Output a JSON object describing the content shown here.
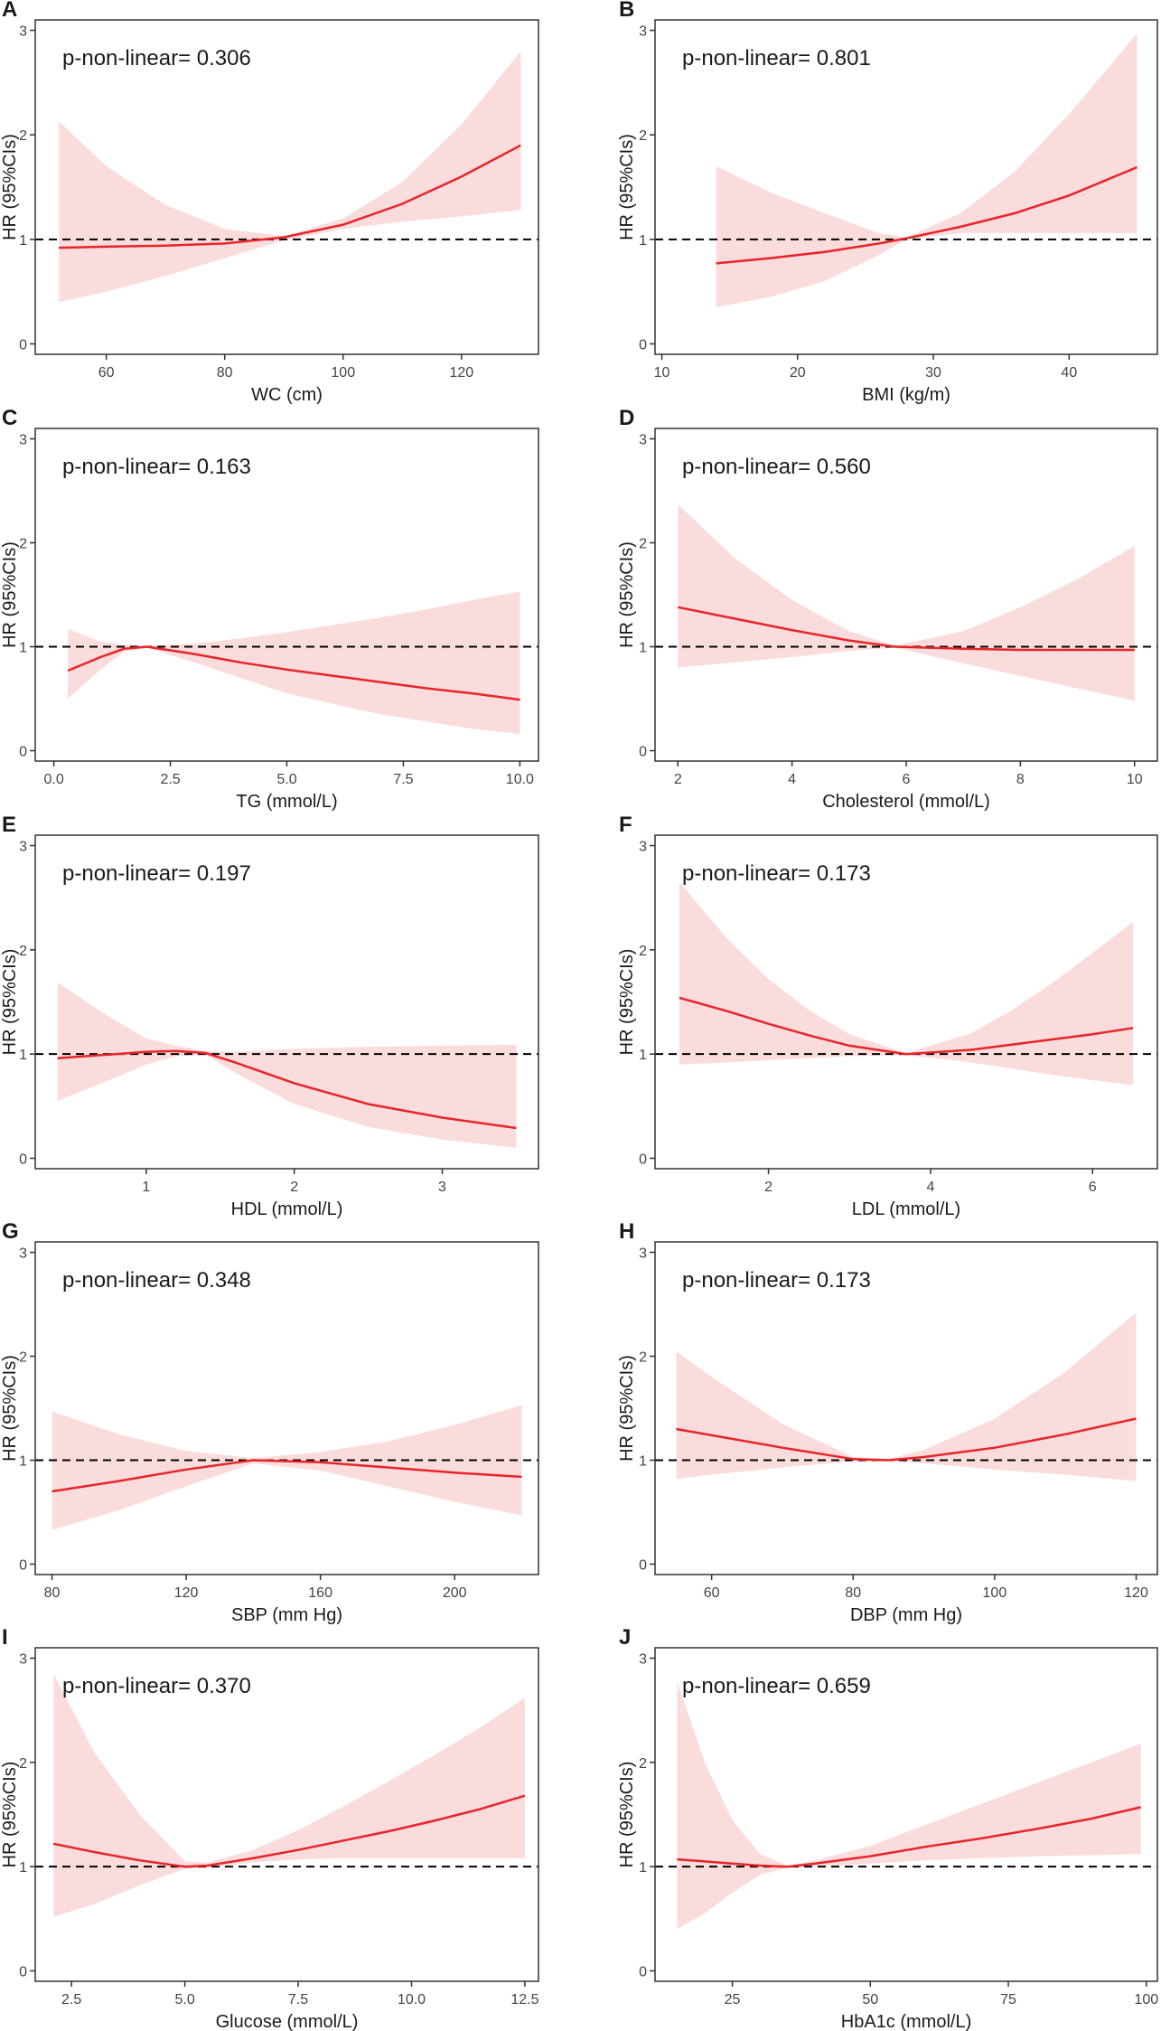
{
  "colors": {
    "line": "#e8242b",
    "band": "#fbdcdc",
    "reference": "#000000",
    "axis": "#333333",
    "text": "#1a1a1a"
  },
  "chart_data": [
    {
      "panel": "A",
      "type": "line",
      "xlabel": "WC (cm)",
      "ylabel": "HR (95%CIs)",
      "annotation": "p-non-linear= 0.306",
      "xlim": [
        48,
        133
      ],
      "ylim": [
        -0.1,
        3.1
      ],
      "xticks": [
        60,
        80,
        100,
        120
      ],
      "xtick_labels": [
        "60",
        "80",
        "100",
        "120"
      ],
      "yticks": [
        0,
        1,
        2,
        3
      ],
      "reference_line": 1,
      "series": [
        {
          "name": "HR",
          "x": [
            52,
            60,
            70,
            80,
            90,
            100,
            110,
            120,
            130
          ],
          "y": [
            0.92,
            0.93,
            0.94,
            0.96,
            1.02,
            1.14,
            1.34,
            1.6,
            1.9
          ]
        },
        {
          "name": "Lower 95% CI",
          "x": [
            52,
            60,
            70,
            80,
            90,
            100,
            110,
            120,
            130
          ],
          "y": [
            0.4,
            0.5,
            0.65,
            0.82,
            0.99,
            1.1,
            1.17,
            1.22,
            1.28
          ]
        },
        {
          "name": "Upper 95% CI",
          "x": [
            52,
            60,
            70,
            80,
            90,
            100,
            110,
            120,
            130
          ],
          "y": [
            2.13,
            1.7,
            1.33,
            1.1,
            1.03,
            1.2,
            1.55,
            2.1,
            2.8
          ]
        }
      ]
    },
    {
      "panel": "B",
      "type": "line",
      "xlabel": "BMI (kg/m)",
      "ylabel": "HR (95%CIs)",
      "annotation": "p-non-linear= 0.801",
      "xlim": [
        9.5,
        46.5
      ],
      "ylim": [
        -0.1,
        3.1
      ],
      "xticks": [
        10,
        20,
        30,
        40
      ],
      "xtick_labels": [
        "10",
        "20",
        "30",
        "40"
      ],
      "yticks": [
        0,
        1,
        2,
        3
      ],
      "reference_line": 1,
      "series": [
        {
          "name": "HR",
          "x": [
            14,
            18,
            22,
            26,
            28,
            32,
            36,
            40,
            45
          ],
          "y": [
            0.77,
            0.82,
            0.88,
            0.96,
            1.01,
            1.12,
            1.25,
            1.42,
            1.69
          ]
        },
        {
          "name": "Lower 95% CI",
          "x": [
            14,
            18,
            22,
            26,
            28,
            32,
            36,
            40,
            45
          ],
          "y": [
            0.35,
            0.45,
            0.6,
            0.85,
            1.0,
            1.06,
            1.06,
            1.06,
            1.06
          ]
        },
        {
          "name": "Upper 95% CI",
          "x": [
            14,
            18,
            22,
            26,
            28,
            32,
            36,
            40,
            45
          ],
          "y": [
            1.7,
            1.45,
            1.25,
            1.06,
            1.02,
            1.25,
            1.65,
            2.2,
            2.97
          ]
        }
      ]
    },
    {
      "panel": "C",
      "type": "line",
      "xlabel": "TG (mmol/L)",
      "ylabel": "HR (95%CIs)",
      "annotation": "p-non-linear= 0.163",
      "xlim": [
        -0.4,
        10.4
      ],
      "ylim": [
        -0.1,
        3.1
      ],
      "xticks": [
        0,
        2.5,
        5,
        7.5,
        10
      ],
      "xtick_labels": [
        "0.0",
        "2.5",
        "5.0",
        "7.5",
        "10.0"
      ],
      "yticks": [
        0,
        1,
        2,
        3
      ],
      "reference_line": 1,
      "series": [
        {
          "name": "HR",
          "x": [
            0.3,
            1,
            1.5,
            2,
            3,
            4,
            5,
            6,
            7,
            8,
            9,
            10
          ],
          "y": [
            0.77,
            0.9,
            0.98,
            1.0,
            0.93,
            0.85,
            0.78,
            0.72,
            0.66,
            0.6,
            0.55,
            0.49
          ]
        },
        {
          "name": "Lower 95% CI",
          "x": [
            0.3,
            1,
            1.5,
            2,
            3,
            4,
            5,
            6,
            7,
            8,
            9,
            10
          ],
          "y": [
            0.5,
            0.78,
            0.95,
            0.99,
            0.85,
            0.7,
            0.55,
            0.45,
            0.35,
            0.28,
            0.21,
            0.16
          ]
        },
        {
          "name": "Upper 95% CI",
          "x": [
            0.3,
            1,
            1.5,
            2,
            3,
            4,
            5,
            6,
            7,
            8,
            9,
            10
          ],
          "y": [
            1.17,
            1.05,
            1.02,
            1.01,
            1.03,
            1.08,
            1.14,
            1.21,
            1.28,
            1.36,
            1.45,
            1.53
          ]
        }
      ]
    },
    {
      "panel": "D",
      "type": "line",
      "xlabel": "Cholesterol (mmol/L)",
      "ylabel": "HR (95%CIs)",
      "annotation": "p-non-linear= 0.560",
      "xlim": [
        1.6,
        10.4
      ],
      "ylim": [
        -0.1,
        3.1
      ],
      "xticks": [
        2,
        4,
        6,
        8,
        10
      ],
      "xtick_labels": [
        "2",
        "4",
        "6",
        "8",
        "10"
      ],
      "yticks": [
        0,
        1,
        2,
        3
      ],
      "reference_line": 1,
      "series": [
        {
          "name": "HR",
          "x": [
            2,
            3,
            4,
            5,
            5.8,
            7,
            8,
            9,
            10
          ],
          "y": [
            1.38,
            1.27,
            1.16,
            1.06,
            1.0,
            0.98,
            0.97,
            0.97,
            0.97
          ]
        },
        {
          "name": "Lower 95% CI",
          "x": [
            2,
            3,
            4,
            5,
            5.8,
            7,
            8,
            9,
            10
          ],
          "y": [
            0.8,
            0.85,
            0.9,
            0.96,
            0.99,
            0.84,
            0.72,
            0.6,
            0.48
          ]
        },
        {
          "name": "Upper 95% CI",
          "x": [
            2,
            3,
            4,
            5,
            5.8,
            7,
            8,
            9,
            10
          ],
          "y": [
            2.37,
            1.85,
            1.45,
            1.15,
            1.01,
            1.15,
            1.38,
            1.65,
            1.97
          ]
        }
      ]
    },
    {
      "panel": "E",
      "type": "line",
      "xlabel": "HDL (mmol/L)",
      "ylabel": "HR (95%CIs)",
      "annotation": "p-non-linear= 0.197",
      "xlim": [
        0.25,
        3.65
      ],
      "ylim": [
        -0.1,
        3.1
      ],
      "xticks": [
        1,
        2,
        3
      ],
      "xtick_labels": [
        "1",
        "2",
        "3"
      ],
      "yticks": [
        0,
        1,
        2,
        3
      ],
      "reference_line": 1,
      "series": [
        {
          "name": "HR",
          "x": [
            0.4,
            0.7,
            1.0,
            1.2,
            1.4,
            1.6,
            2.0,
            2.5,
            3.0,
            3.5
          ],
          "y": [
            0.96,
            0.99,
            1.02,
            1.03,
            1.01,
            0.92,
            0.72,
            0.52,
            0.39,
            0.29
          ]
        },
        {
          "name": "Lower 95% CI",
          "x": [
            0.4,
            0.7,
            1.0,
            1.2,
            1.4,
            1.6,
            2.0,
            2.5,
            3.0,
            3.5
          ],
          "y": [
            0.55,
            0.72,
            0.9,
            0.98,
            0.99,
            0.82,
            0.52,
            0.3,
            0.18,
            0.1
          ]
        },
        {
          "name": "Upper 95% CI",
          "x": [
            0.4,
            0.7,
            1.0,
            1.2,
            1.4,
            1.6,
            2.0,
            2.5,
            3.0,
            3.5
          ],
          "y": [
            1.69,
            1.4,
            1.15,
            1.08,
            1.03,
            1.02,
            1.05,
            1.07,
            1.08,
            1.09
          ]
        }
      ]
    },
    {
      "panel": "F",
      "type": "line",
      "xlabel": "LDL (mmol/L)",
      "ylabel": "HR (95%CIs)",
      "annotation": "p-non-linear= 0.173",
      "xlim": [
        0.6,
        6.8
      ],
      "ylim": [
        -0.1,
        3.1
      ],
      "xticks": [
        2,
        4,
        6
      ],
      "xtick_labels": [
        "2",
        "4",
        "6"
      ],
      "yticks": [
        0,
        1,
        2,
        3
      ],
      "reference_line": 1,
      "series": [
        {
          "name": "HR",
          "x": [
            0.9,
            1.5,
            2.0,
            2.5,
            3.0,
            3.7,
            4.5,
            5.0,
            5.5,
            6.0,
            6.5
          ],
          "y": [
            1.54,
            1.41,
            1.29,
            1.18,
            1.08,
            1.0,
            1.04,
            1.09,
            1.14,
            1.19,
            1.25
          ]
        },
        {
          "name": "Lower 95% CI",
          "x": [
            0.9,
            1.5,
            2.0,
            2.5,
            3.0,
            3.7,
            4.5,
            5.0,
            5.5,
            6.0,
            6.5
          ],
          "y": [
            0.9,
            0.92,
            0.94,
            0.96,
            0.98,
            0.99,
            0.92,
            0.86,
            0.8,
            0.75,
            0.7
          ]
        },
        {
          "name": "Upper 95% CI",
          "x": [
            0.9,
            1.5,
            2.0,
            2.5,
            3.0,
            3.7,
            4.5,
            5.0,
            5.5,
            6.0,
            6.5
          ],
          "y": [
            2.65,
            2.1,
            1.72,
            1.42,
            1.19,
            1.01,
            1.2,
            1.42,
            1.68,
            1.97,
            2.27
          ]
        }
      ]
    },
    {
      "panel": "G",
      "type": "line",
      "xlabel": "SBP (mm Hg)",
      "ylabel": "HR (95%CIs)",
      "annotation": "p-non-linear= 0.348",
      "xlim": [
        75,
        225
      ],
      "ylim": [
        -0.1,
        3.1
      ],
      "xticks": [
        80,
        120,
        160,
        200
      ],
      "xtick_labels": [
        "80",
        "120",
        "160",
        "200"
      ],
      "yticks": [
        0,
        1,
        2,
        3
      ],
      "reference_line": 1,
      "series": [
        {
          "name": "HR",
          "x": [
            80,
            100,
            120,
            140,
            160,
            180,
            200,
            220
          ],
          "y": [
            0.7,
            0.8,
            0.91,
            1.0,
            0.98,
            0.93,
            0.88,
            0.84
          ]
        },
        {
          "name": "Lower 95% CI",
          "x": [
            80,
            100,
            120,
            140,
            160,
            180,
            200,
            220
          ],
          "y": [
            0.33,
            0.52,
            0.75,
            0.97,
            0.9,
            0.75,
            0.6,
            0.47
          ]
        },
        {
          "name": "Upper 95% CI",
          "x": [
            80,
            100,
            120,
            140,
            160,
            180,
            200,
            220
          ],
          "y": [
            1.47,
            1.25,
            1.09,
            1.02,
            1.08,
            1.18,
            1.34,
            1.53
          ]
        }
      ]
    },
    {
      "panel": "H",
      "type": "line",
      "xlabel": "DBP (mm Hg)",
      "ylabel": "HR (95%CIs)",
      "annotation": "p-non-linear= 0.173",
      "xlim": [
        52,
        123
      ],
      "ylim": [
        -0.1,
        3.1
      ],
      "xticks": [
        60,
        80,
        100,
        120
      ],
      "xtick_labels": [
        "60",
        "80",
        "100",
        "120"
      ],
      "yticks": [
        0,
        1,
        2,
        3
      ],
      "reference_line": 1,
      "series": [
        {
          "name": "HR",
          "x": [
            55,
            60,
            70,
            80,
            85,
            90,
            100,
            110,
            120
          ],
          "y": [
            1.3,
            1.24,
            1.12,
            1.01,
            1.0,
            1.03,
            1.12,
            1.25,
            1.4
          ]
        },
        {
          "name": "Lower 95% CI",
          "x": [
            55,
            60,
            70,
            80,
            85,
            90,
            100,
            110,
            120
          ],
          "y": [
            0.82,
            0.86,
            0.93,
            0.99,
            0.99,
            0.97,
            0.91,
            0.86,
            0.8
          ]
        },
        {
          "name": "Upper 95% CI",
          "x": [
            55,
            60,
            70,
            80,
            85,
            90,
            100,
            110,
            120
          ],
          "y": [
            2.05,
            1.8,
            1.35,
            1.03,
            1.01,
            1.1,
            1.4,
            1.85,
            2.42
          ]
        }
      ]
    },
    {
      "panel": "I",
      "type": "line",
      "xlabel": "Glucose (mmol/L)",
      "ylabel": "HR (95%CIs)",
      "annotation": "p-non-linear= 0.370",
      "xlim": [
        1.7,
        12.8
      ],
      "ylim": [
        -0.1,
        3.1
      ],
      "xticks": [
        2.5,
        5,
        7.5,
        10,
        12.5
      ],
      "xtick_labels": [
        "2.5",
        "5.0",
        "7.5",
        "10.0",
        "12.5"
      ],
      "yticks": [
        0,
        1,
        2,
        3
      ],
      "reference_line": 1,
      "series": [
        {
          "name": "HR",
          "x": [
            2.1,
            3,
            4,
            5,
            5.5,
            6.5,
            7.5,
            8.5,
            9.5,
            10.5,
            11.5,
            12.5
          ],
          "y": [
            1.22,
            1.14,
            1.06,
            1.0,
            1.01,
            1.08,
            1.16,
            1.25,
            1.34,
            1.44,
            1.55,
            1.68
          ]
        },
        {
          "name": "Lower 95% CI",
          "x": [
            2.1,
            3,
            4,
            5,
            5.5,
            6.5,
            7.5,
            8.5,
            9.5,
            10.5,
            11.5,
            12.5
          ],
          "y": [
            0.52,
            0.64,
            0.82,
            0.98,
            0.99,
            1.04,
            1.07,
            1.08,
            1.08,
            1.08,
            1.08,
            1.08
          ]
        },
        {
          "name": "Upper 95% CI",
          "x": [
            2.1,
            3,
            4,
            5,
            5.5,
            6.5,
            7.5,
            8.5,
            9.5,
            10.5,
            11.5,
            12.5
          ],
          "y": [
            2.85,
            2.1,
            1.5,
            1.05,
            1.04,
            1.16,
            1.35,
            1.58,
            1.82,
            2.07,
            2.33,
            2.62
          ]
        }
      ]
    },
    {
      "panel": "J",
      "type": "line",
      "xlabel": "HbA1c (mmol/L)",
      "ylabel": "HR (95%CIs)",
      "annotation": "p-non-linear= 0.659",
      "xlim": [
        11,
        102
      ],
      "ylim": [
        -0.1,
        3.1
      ],
      "xticks": [
        25,
        50,
        75,
        100
      ],
      "xtick_labels": [
        "25",
        "50",
        "75",
        "100"
      ],
      "yticks": [
        0,
        1,
        2,
        3
      ],
      "reference_line": 1,
      "series": [
        {
          "name": "HR",
          "x": [
            15,
            20,
            25,
            30,
            35,
            40,
            50,
            60,
            70,
            80,
            90,
            99
          ],
          "y": [
            1.07,
            1.05,
            1.03,
            1.01,
            1.0,
            1.03,
            1.1,
            1.19,
            1.27,
            1.36,
            1.46,
            1.57
          ]
        },
        {
          "name": "Lower 95% CI",
          "x": [
            15,
            20,
            25,
            30,
            35,
            40,
            50,
            60,
            70,
            80,
            90,
            99
          ],
          "y": [
            0.4,
            0.55,
            0.75,
            0.92,
            0.99,
            1.0,
            1.03,
            1.06,
            1.08,
            1.1,
            1.11,
            1.12
          ]
        },
        {
          "name": "Upper 95% CI",
          "x": [
            15,
            20,
            25,
            30,
            35,
            40,
            50,
            60,
            70,
            80,
            90,
            99
          ],
          "y": [
            2.78,
            2.0,
            1.45,
            1.12,
            1.01,
            1.06,
            1.2,
            1.4,
            1.6,
            1.8,
            2.0,
            2.18
          ]
        }
      ]
    }
  ]
}
